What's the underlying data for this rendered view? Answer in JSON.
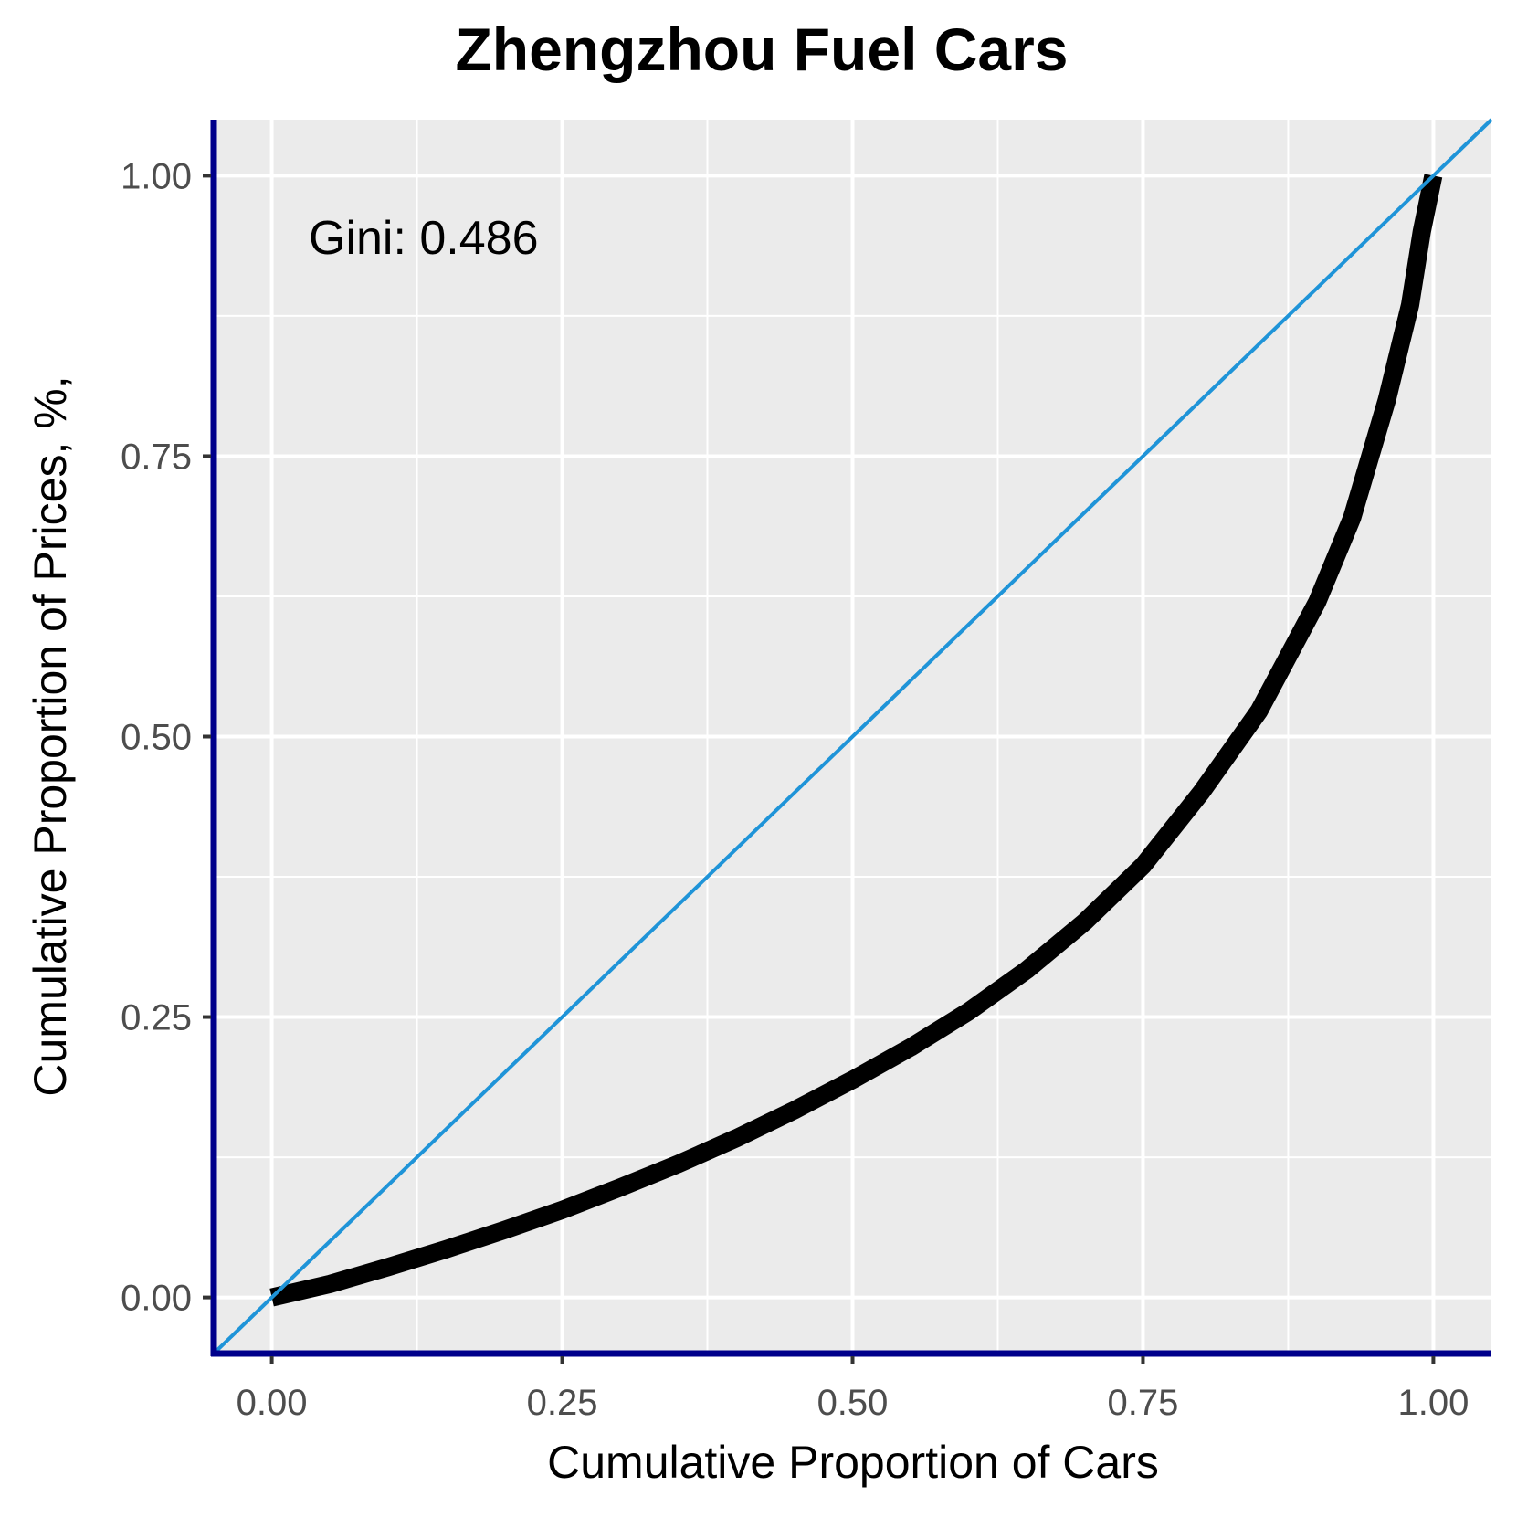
{
  "chart_data": {
    "type": "line",
    "title": "Zhengzhou Fuel Cars",
    "xlabel": "Cumulative Proportion of Cars",
    "ylabel": "Cumulative Proportion of Prices, %,",
    "xlim": [
      -0.05,
      1.05
    ],
    "ylim": [
      -0.05,
      1.05
    ],
    "x_ticks": [
      "0.00",
      "0.25",
      "0.50",
      "0.75",
      "1.00"
    ],
    "y_ticks": [
      "0.00",
      "0.25",
      "0.50",
      "0.75",
      "1.00"
    ],
    "grid": true,
    "annotation": "Gini: 0.486",
    "series": [
      {
        "kind": "lorenz-curve",
        "color": "#000000",
        "x": [
          0.0,
          0.05,
          0.1,
          0.15,
          0.2,
          0.25,
          0.3,
          0.35,
          0.4,
          0.45,
          0.5,
          0.55,
          0.6,
          0.65,
          0.7,
          0.75,
          0.8,
          0.85,
          0.9,
          0.93,
          0.96,
          0.98,
          0.99,
          1.0
        ],
        "y": [
          0.0,
          0.012,
          0.027,
          0.043,
          0.06,
          0.078,
          0.098,
          0.119,
          0.142,
          0.167,
          0.194,
          0.223,
          0.255,
          0.292,
          0.335,
          0.385,
          0.45,
          0.523,
          0.62,
          0.695,
          0.8,
          0.885,
          0.95,
          1.0
        ]
      },
      {
        "kind": "equality-line",
        "color": "#1f94d8",
        "x": [
          -0.05,
          1.05
        ],
        "y": [
          -0.05,
          1.05
        ]
      }
    ],
    "colors": {
      "panel_background": "#ebebeb",
      "grid": "#ffffff",
      "axis_line": "#00008b",
      "curve": "#000000",
      "equality": "#1f94d8"
    }
  }
}
